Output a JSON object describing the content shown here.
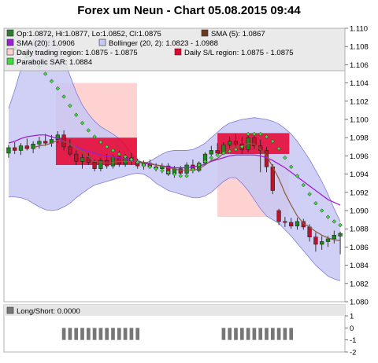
{
  "title": "Forex um Neun - Chart 05.08.2015 09:44",
  "legend": [
    {
      "label": "Op:1.0872, Hi:1.0877, Lo:1.0852, Cl:1.0875",
      "color": "#2e7d32"
    },
    {
      "label": "SMA (5): 1.0867",
      "color": "#6b3a1e"
    },
    {
      "label": "SMA (20): 1.0906",
      "color": "#9b1fd6"
    },
    {
      "label": "Bollinger (20, 2): 1.0823 - 1.0988",
      "color": "#c8c8f5"
    },
    {
      "label": "Daily trading region: 1.0875 - 1.0875",
      "color": "#ffd2d2"
    },
    {
      "label": "Daily S/L region: 1.0875 - 1.0875",
      "color": "#e6002d"
    },
    {
      "label": "Parabolic SAR: 1.0884",
      "color": "#3ddc3d"
    }
  ],
  "subpanel_label": "Long/Short: 0.0000",
  "colors": {
    "up": "#1a8a1a",
    "down": "#c0102a",
    "bollinger_fill": "#c8c8f5",
    "bollinger_edge": "#7d7dd6",
    "sma20": "#9b1fd6",
    "sma5": "#8b5a3c",
    "trading_region": "#ffd2d2",
    "sl_region": "#e6002d",
    "sar": "#3ddc3d",
    "ls_bar": "#777777"
  },
  "chart_data": {
    "type": "candlestick",
    "ylim": [
      1.08,
      1.11
    ],
    "yticks": [
      "1.110",
      "1.108",
      "1.106",
      "1.104",
      "1.102",
      "1.100",
      "1.098",
      "1.096",
      "1.094",
      "1.092",
      "1.090",
      "1.088",
      "1.086",
      "1.084",
      "1.082",
      "1.080"
    ],
    "ohlc": [
      [
        1.0963,
        1.0972,
        1.0958,
        1.0969
      ],
      [
        1.0969,
        1.0975,
        1.0962,
        1.0966
      ],
      [
        1.0966,
        1.0974,
        1.0961,
        1.0971
      ],
      [
        1.0971,
        1.0979,
        1.0966,
        1.0968
      ],
      [
        1.0968,
        1.0976,
        1.0963,
        1.0973
      ],
      [
        1.0973,
        1.0981,
        1.0968,
        1.0976
      ],
      [
        1.0976,
        1.0984,
        1.0971,
        1.0974
      ],
      [
        1.0974,
        1.0983,
        1.097,
        1.0978
      ],
      [
        1.0978,
        1.0987,
        1.0974,
        1.0983
      ],
      [
        1.0983,
        1.0988,
        1.0966,
        1.097
      ],
      [
        1.097,
        1.0978,
        1.096,
        1.0962
      ],
      [
        1.0962,
        1.0966,
        1.095,
        1.0954
      ],
      [
        1.0954,
        1.0962,
        1.0946,
        1.0958
      ],
      [
        1.0958,
        1.0963,
        1.095,
        1.0953
      ],
      [
        1.0953,
        1.0956,
        1.0943,
        1.0946
      ],
      [
        1.0946,
        1.0958,
        1.0943,
        1.0955
      ],
      [
        1.0955,
        1.0962,
        1.0946,
        1.0949
      ],
      [
        1.0949,
        1.0962,
        1.0946,
        1.0959
      ],
      [
        1.0959,
        1.0966,
        1.0948,
        1.0951
      ],
      [
        1.0951,
        1.0962,
        1.0948,
        1.0958
      ],
      [
        1.0958,
        1.0963,
        1.095,
        1.0954
      ],
      [
        1.0954,
        1.0957,
        1.0946,
        1.0949
      ],
      [
        1.0949,
        1.0955,
        1.0945,
        1.0952
      ],
      [
        1.0952,
        1.0956,
        1.0946,
        1.0948
      ],
      [
        1.0948,
        1.0952,
        1.0943,
        1.0946
      ],
      [
        1.0946,
        1.0952,
        1.0941,
        1.0949
      ],
      [
        1.0949,
        1.0952,
        1.0938,
        1.094
      ],
      [
        1.094,
        1.0949,
        1.0936,
        1.0946
      ],
      [
        1.0946,
        1.0949,
        1.0938,
        1.0941
      ],
      [
        1.0941,
        1.0953,
        1.0939,
        1.095
      ],
      [
        1.095,
        1.0956,
        1.0941,
        1.0944
      ],
      [
        1.0944,
        1.0954,
        1.0942,
        1.0952
      ],
      [
        1.0952,
        1.0964,
        1.095,
        1.0962
      ],
      [
        1.0962,
        1.0971,
        1.0957,
        1.0966
      ],
      [
        1.0966,
        1.0974,
        1.096,
        1.0963
      ],
      [
        1.0963,
        1.0975,
        1.0961,
        1.0972
      ],
      [
        1.0972,
        1.0981,
        1.0968,
        1.0976
      ],
      [
        1.0976,
        1.0984,
        1.097,
        1.0973
      ],
      [
        1.0973,
        1.0981,
        1.0962,
        1.0967
      ],
      [
        1.0967,
        1.0983,
        1.0964,
        1.098
      ],
      [
        1.098,
        1.0984,
        1.0968,
        1.0971
      ],
      [
        1.0971,
        1.0978,
        1.0942,
        1.0966
      ],
      [
        1.0966,
        1.097,
        1.0942,
        1.0948
      ],
      [
        1.0948,
        1.0951,
        1.0918,
        1.0922
      ],
      [
        1.09,
        1.0902,
        1.0884,
        1.0888
      ],
      [
        1.0888,
        1.0893,
        1.0882,
        1.0887
      ],
      [
        1.0887,
        1.0892,
        1.088,
        1.0883
      ],
      [
        1.0883,
        1.0892,
        1.0879,
        1.0888
      ],
      [
        1.0888,
        1.0891,
        1.0879,
        1.0882
      ],
      [
        1.0882,
        1.0885,
        1.0866,
        1.0871
      ],
      [
        1.0871,
        1.0876,
        1.0855,
        1.0863
      ],
      [
        1.0863,
        1.0872,
        1.0857,
        1.0866
      ],
      [
        1.0866,
        1.0872,
        1.086,
        1.0869
      ],
      [
        1.0869,
        1.0878,
        1.0864,
        1.0873
      ],
      [
        1.0872,
        1.0877,
        1.0852,
        1.0875
      ]
    ],
    "bollinger_upper": [
      1.1012,
      1.1032,
      1.1055,
      1.1074,
      1.1086,
      1.1094,
      1.1096,
      1.1092,
      1.1082,
      1.1066,
      1.1048,
      1.103,
      1.1016,
      1.1006,
      1.0998,
      1.0992,
      1.0988,
      1.0984,
      1.0979,
      1.0972,
      1.0962,
      1.0956,
      1.0952,
      1.0954,
      1.0958,
      1.0962,
      1.0965,
      1.0966,
      1.0966,
      1.0966,
      1.0967,
      1.097,
      1.0974,
      1.098,
      1.0986,
      1.0992,
      1.0996,
      1.0998,
      1.1,
      1.1001,
      1.1002,
      1.1001,
      1.1,
      1.0998,
      1.0995,
      1.099,
      1.0984,
      1.0976,
      1.0966,
      1.0956,
      1.0944,
      1.0932,
      1.0918,
      1.0902,
      1.0888
    ],
    "bollinger_lower": [
      1.0915,
      1.0915,
      1.0914,
      1.0912,
      1.0908,
      1.0904,
      1.0901,
      1.09,
      1.0901,
      1.0904,
      1.0908,
      1.0914,
      1.0919,
      1.0924,
      1.0928,
      1.093,
      1.0932,
      1.0934,
      1.0936,
      1.0938,
      1.094,
      1.0941,
      1.094,
      1.0936,
      1.093,
      1.0926,
      1.0922,
      1.092,
      1.0918,
      1.0916,
      1.0914,
      1.0914,
      1.0916,
      1.092,
      1.0926,
      1.0932,
      1.0936,
      1.0936,
      1.093,
      1.0922,
      1.0912,
      1.0902,
      1.0894,
      1.089,
      1.0886,
      1.0879,
      1.0872,
      1.0864,
      1.0856,
      1.0848,
      1.084,
      1.0834,
      1.0828,
      1.0825,
      1.0823
    ],
    "sma20": [
      1.0974,
      1.0976,
      1.0979,
      1.0981,
      1.0982,
      1.0983,
      1.0983,
      1.0981,
      1.0979,
      1.0976,
      1.0973,
      1.097,
      1.0967,
      1.0965,
      1.0963,
      1.0961,
      1.096,
      1.0959,
      1.0958,
      1.0957,
      1.0955,
      1.0953,
      1.0952,
      1.0951,
      1.095,
      1.0949,
      1.0948,
      1.0947,
      1.0947,
      1.0947,
      1.0948,
      1.0949,
      1.0951,
      1.0954,
      1.0956,
      1.0958,
      1.096,
      1.0961,
      1.0961,
      1.0961,
      1.0961,
      1.096,
      1.0958,
      1.0955,
      1.0951,
      1.0947,
      1.0942,
      1.0937,
      1.0932,
      1.0927,
      1.0922,
      1.0917,
      1.0912,
      1.0909,
      1.0906
    ],
    "sma5": [
      null,
      null,
      null,
      null,
      1.0969,
      1.0971,
      1.0972,
      1.0974,
      1.0977,
      1.0976,
      1.0973,
      1.0969,
      1.0965,
      1.0959,
      1.0954,
      1.0953,
      1.0952,
      1.0953,
      1.0954,
      1.0954,
      1.0954,
      1.0954,
      1.0953,
      1.0952,
      1.095,
      1.0949,
      1.0947,
      1.0946,
      1.0944,
      1.0945,
      1.0944,
      1.0946,
      1.095,
      1.0955,
      1.0957,
      1.0963,
      1.0968,
      1.097,
      1.097,
      1.0974,
      1.0973,
      1.0967,
      1.096,
      1.0948,
      1.0935,
      1.0919,
      1.0906,
      1.0894,
      1.0886,
      1.0882,
      1.0877,
      1.0873,
      1.087,
      1.0868,
      1.0867
    ],
    "sar": [
      1.1082,
      1.1078,
      1.1074,
      1.1069,
      1.1064,
      1.1058,
      1.105,
      1.1042,
      1.1034,
      1.1025,
      1.1015,
      1.1005,
      1.0996,
      1.0988,
      1.0981,
      1.0975,
      1.097,
      1.0966,
      1.0962,
      1.0959,
      1.0956,
      1.0953,
      1.095,
      1.0948,
      1.0946,
      1.0944,
      1.0942,
      1.094,
      1.0938,
      1.0938,
      1.0945,
      1.095,
      1.0954,
      1.0958,
      1.0961,
      1.0963,
      1.0965,
      1.0967,
      1.097,
      1.0984,
      1.0984,
      1.0984,
      1.0981,
      1.0976,
      1.0968,
      1.0958,
      1.0948,
      1.0938,
      1.0928,
      1.0918,
      1.0908,
      1.09,
      1.0893,
      1.0888,
      1.0884
    ],
    "trading_regions": [
      {
        "start": 8.2,
        "end": 21.4,
        "low": 1.0952,
        "high": 1.104
      },
      {
        "start": 34.5,
        "end": 46.2,
        "low": 1.0893,
        "high": 1.0968
      }
    ],
    "sl_regions": [
      {
        "start": 8.2,
        "end": 21.4,
        "low": 1.095,
        "high": 1.098
      },
      {
        "start": 34.5,
        "end": 46.2,
        "low": 1.0962,
        "high": 1.0985
      }
    ],
    "sub_ylim": [
      -2,
      1
    ],
    "sub_yticks": [
      "1",
      "0",
      "-1",
      "-2"
    ],
    "long_short_ranges": [
      {
        "start": 9,
        "end": 21,
        "value": -1
      },
      {
        "start": 35,
        "end": 46,
        "value": -1
      }
    ]
  }
}
